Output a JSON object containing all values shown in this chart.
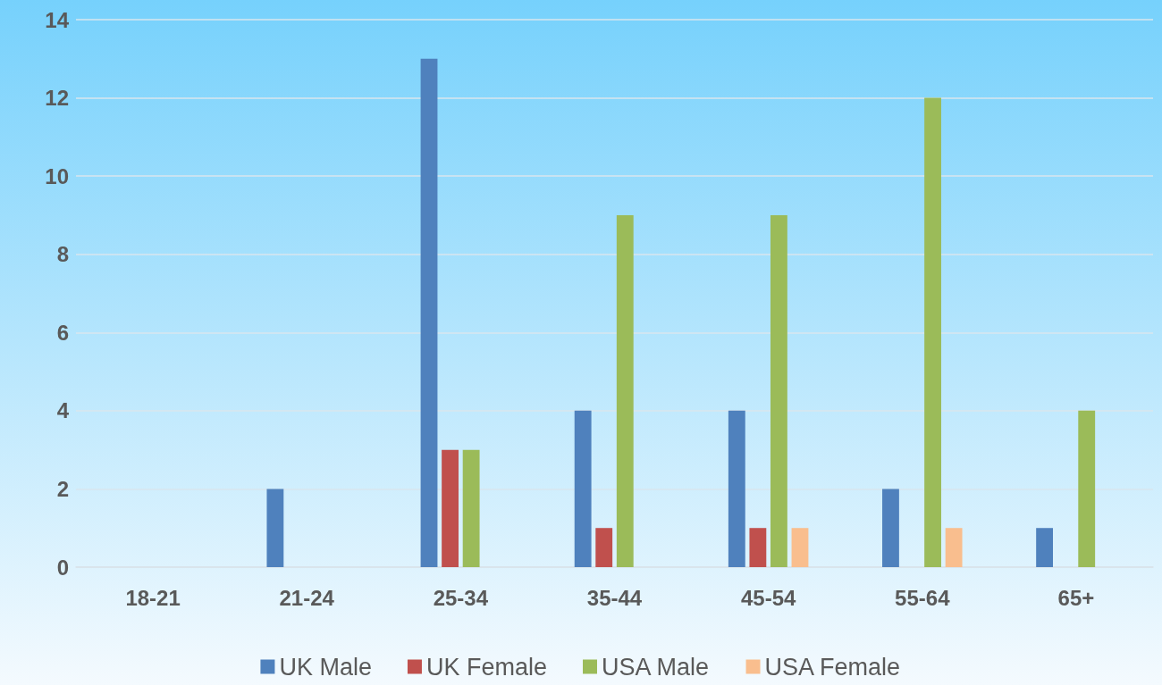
{
  "chart_data": {
    "type": "bar",
    "categories": [
      "18-21",
      "21-24",
      "25-34",
      "35-44",
      "45-54",
      "55-64",
      "65+"
    ],
    "series": [
      {
        "name": "UK Male",
        "color": "#4f81bd",
        "values": [
          0,
          2,
          13,
          4,
          4,
          2,
          1
        ]
      },
      {
        "name": "UK Female",
        "color": "#c0504d",
        "values": [
          0,
          0,
          3,
          1,
          1,
          0,
          0
        ]
      },
      {
        "name": "USA Male",
        "color": "#9bbb59",
        "values": [
          0,
          0,
          3,
          9,
          9,
          12,
          4
        ]
      },
      {
        "name": "USA Female",
        "color": "#f9be8e",
        "values": [
          0,
          0,
          0,
          0,
          1,
          1,
          0
        ]
      }
    ],
    "ylim": [
      0,
      14
    ],
    "yticks": [
      0,
      2,
      4,
      6,
      8,
      10,
      12,
      14
    ],
    "grid": "y",
    "legend": "bottom"
  }
}
